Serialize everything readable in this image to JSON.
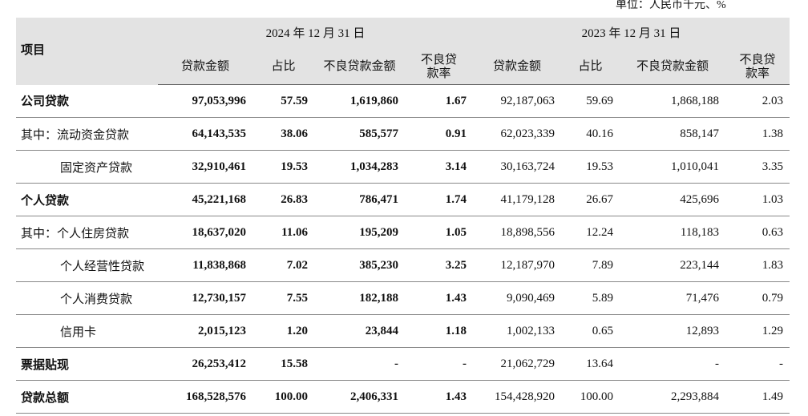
{
  "header": {
    "unit": "单位：人民币千元、%"
  },
  "table": {
    "item_header": "项目",
    "periods": [
      "2024 年 12 月 31 日",
      "2023 年 12 月 31 日"
    ],
    "columns": [
      "贷款金额",
      "占比",
      "不良贷款金额",
      "不良贷款率",
      "贷款金额",
      "占比",
      "不良贷款金额",
      "不良贷款率"
    ],
    "rows": [
      [
        "公司贷款",
        "97,053,996",
        "57.59",
        "1,619,860",
        "1.67",
        "92,187,063",
        "59.69",
        "1,868,188",
        "2.03"
      ],
      [
        "其中：流动资金贷款",
        "64,143,535",
        "38.06",
        "585,577",
        "0.91",
        "62,023,339",
        "40.16",
        "858,147",
        "1.38"
      ],
      [
        "固定资产贷款",
        "32,910,461",
        "19.53",
        "1,034,283",
        "3.14",
        "30,163,724",
        "19.53",
        "1,010,041",
        "3.35"
      ],
      [
        "个人贷款",
        "45,221,168",
        "26.83",
        "786,471",
        "1.74",
        "41,179,128",
        "26.67",
        "425,696",
        "1.03"
      ],
      [
        "其中：个人住房贷款",
        "18,637,020",
        "11.06",
        "195,209",
        "1.05",
        "18,898,556",
        "12.24",
        "118,183",
        "0.63"
      ],
      [
        "个人经营性贷款",
        "11,838,868",
        "7.02",
        "385,230",
        "3.25",
        "12,187,970",
        "7.89",
        "223,144",
        "1.83"
      ],
      [
        "个人消费贷款",
        "12,730,157",
        "7.55",
        "182,188",
        "1.43",
        "9,090,469",
        "5.89",
        "71,476",
        "0.79"
      ],
      [
        "信用卡",
        "2,015,123",
        "1.20",
        "23,844",
        "1.18",
        "1,002,133",
        "0.65",
        "12,893",
        "1.29"
      ],
      [
        "票据贴现",
        "26,253,412",
        "15.58",
        "-",
        "-",
        "21,062,729",
        "13.64",
        "-",
        "-"
      ],
      [
        "贷款总额",
        "168,528,576",
        "100.00",
        "2,406,331",
        "1.43",
        "154,428,920",
        "100.00",
        "2,293,884",
        "1.49"
      ]
    ]
  }
}
